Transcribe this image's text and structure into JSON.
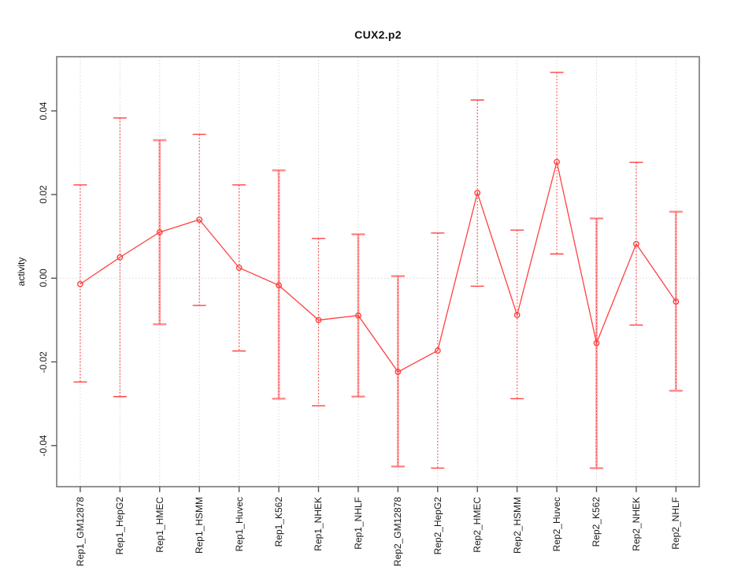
{
  "title": "CUX2.p2",
  "chart_data": {
    "type": "line",
    "title": "CUX2.p2",
    "xlabel": "",
    "ylabel": "activity",
    "legend_position": "none",
    "grid": "vertical dotted gridline at every category; dotted horizontal line at y=0",
    "ylim": [
      -0.0498,
      0.053
    ],
    "ytick_values": [
      0.04,
      0.02,
      0.0,
      -0.02,
      -0.04
    ],
    "ytick_labels": [
      "0.04",
      "0.02",
      "0.00",
      "-0.02",
      "-0.04"
    ],
    "categories": [
      "Rep1_GM12878",
      "Rep1_HepG2",
      "Rep1_HMEC",
      "Rep1_HSMM",
      "Rep1_Huvec",
      "Rep1_K562",
      "Rep1_NHEK",
      "Rep1_NHLF",
      "Rep2_GM12878",
      "Rep2_HepG2",
      "Rep2_HMEC",
      "Rep2_HSMM",
      "Rep2_Huvec",
      "Rep2_K562",
      "Rep2_NHEK",
      "Rep2_NHLF"
    ],
    "series": [
      {
        "name": "activity",
        "marker": "open-circle",
        "values": [
          -0.0014,
          0.005,
          0.011,
          0.014,
          0.0025,
          -0.0017,
          -0.01,
          -0.0089,
          -0.0224,
          -0.0173,
          0.0204,
          -0.0088,
          0.0278,
          -0.0155,
          0.0082,
          -0.0056
        ],
        "error_high": [
          0.0223,
          0.0383,
          0.033,
          0.0344,
          0.0223,
          0.0258,
          0.0095,
          0.0105,
          0.0005,
          0.0108,
          0.0426,
          0.0115,
          0.0492,
          0.0143,
          0.0277,
          0.0159
        ],
        "error_low": [
          -0.0248,
          -0.0283,
          -0.011,
          -0.0065,
          -0.0174,
          -0.0288,
          -0.0305,
          -0.0283,
          -0.045,
          -0.0454,
          -0.0019,
          -0.0288,
          0.0058,
          -0.0454,
          -0.0112,
          -0.0269
        ],
        "wide_error_bar": [
          false,
          false,
          true,
          false,
          false,
          true,
          false,
          true,
          true,
          false,
          false,
          false,
          false,
          true,
          false,
          true
        ]
      }
    ],
    "colors": {
      "series_red": "#ff4040",
      "wide_bar_pink": "#ffa8a8",
      "grid_gray": "#d8d8d8",
      "box_gray": "#787878",
      "tick_gray": "#555555",
      "text_black": "#1a1a1a"
    }
  }
}
